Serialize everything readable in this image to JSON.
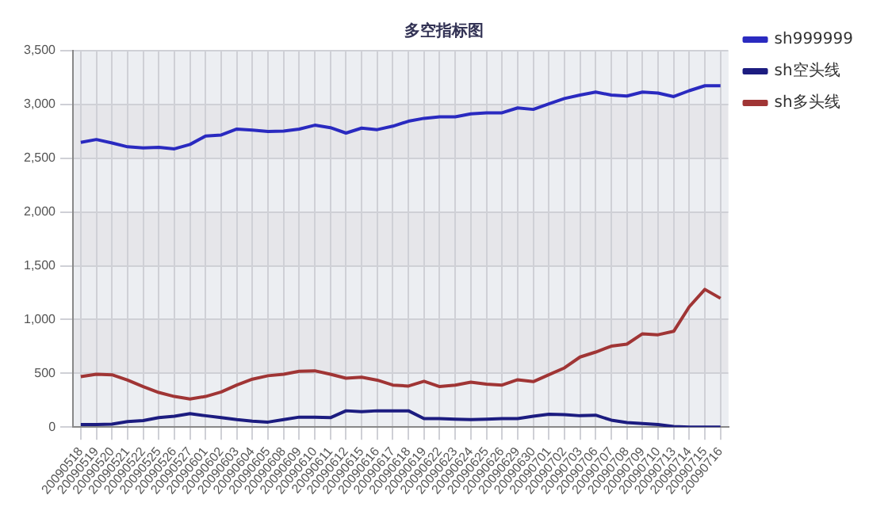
{
  "chart_data": {
    "type": "line",
    "title": "多空指标图",
    "categories": [
      "20090518",
      "20090519",
      "20090520",
      "20090521",
      "20090522",
      "20090525",
      "20090526",
      "20090527",
      "20090601",
      "20090602",
      "20090603",
      "20090604",
      "20090605",
      "20090608",
      "20090609",
      "20090610",
      "20090611",
      "20090612",
      "20090615",
      "20090616",
      "20090617",
      "20090618",
      "20090619",
      "20090622",
      "20090623",
      "20090624",
      "20090625",
      "20090626",
      "20090629",
      "20090630",
      "20090701",
      "20090702",
      "20090703",
      "20090706",
      "20090707",
      "20090708",
      "20090709",
      "20090710",
      "20090713",
      "20090714",
      "20090715",
      "20090716"
    ],
    "series": [
      {
        "name": "sh999999",
        "color": "#2a2ac0",
        "values": [
          2647,
          2674,
          2642,
          2606,
          2596,
          2601,
          2587,
          2628,
          2706,
          2716,
          2771,
          2761,
          2748,
          2752,
          2771,
          2807,
          2784,
          2734,
          2780,
          2766,
          2798,
          2844,
          2871,
          2885,
          2885,
          2913,
          2922,
          2922,
          2968,
          2954,
          3005,
          3055,
          3087,
          3115,
          3087,
          3078,
          3115,
          3106,
          3073,
          3128,
          3174,
          3174
        ]
      },
      {
        "name": "sh空头线",
        "color": "#1c1c80",
        "values": [
          23,
          23,
          27,
          50,
          60,
          87,
          101,
          124,
          105,
          87,
          69,
          55,
          46,
          69,
          92,
          92,
          87,
          151,
          142,
          151,
          151,
          151,
          78,
          78,
          73,
          69,
          73,
          78,
          78,
          101,
          119,
          115,
          105,
          110,
          64,
          41,
          32,
          23,
          5,
          0,
          0,
          0
        ]
      },
      {
        "name": "sh多头线",
        "color": "#a03535",
        "values": [
          468,
          491,
          486,
          436,
          376,
          321,
          284,
          261,
          284,
          326,
          390,
          445,
          477,
          491,
          518,
          523,
          491,
          454,
          463,
          436,
          390,
          381,
          425,
          376,
          390,
          417,
          399,
          390,
          440,
          422,
          486,
          550,
          651,
          697,
          752,
          771,
          867,
          858,
          890,
          1119,
          1280,
          1197
        ]
      }
    ],
    "ylim": [
      0,
      3500
    ],
    "yticks": [
      {
        "value": 0,
        "label": "0"
      },
      {
        "value": 500,
        "label": "500"
      },
      {
        "value": 1000,
        "label": "1,000"
      },
      {
        "value": 1500,
        "label": "1,500"
      },
      {
        "value": 2000,
        "label": "2,000"
      },
      {
        "value": 2500,
        "label": "2,500"
      },
      {
        "value": 3000,
        "label": "3,000"
      },
      {
        "value": 3500,
        "label": "3,500"
      }
    ],
    "grid": true,
    "legend": "top right",
    "marker": "none",
    "line_style": "solid"
  }
}
